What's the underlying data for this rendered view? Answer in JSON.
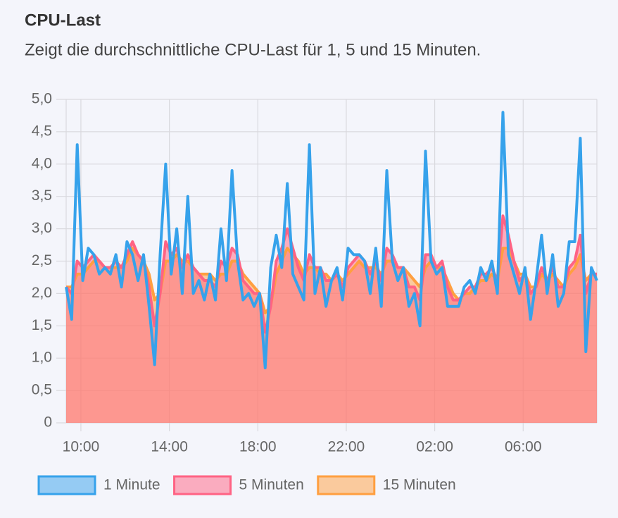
{
  "chart_data": {
    "type": "line",
    "title": "CPU-Last",
    "subtitle": "Zeigt die durchschnittliche CPU-Last für 1, 5 und 15 Minuten.",
    "x": [
      "09:20",
      "09:35",
      "09:50",
      "10:05",
      "10:20",
      "10:35",
      "10:50",
      "11:05",
      "11:20",
      "11:35",
      "11:50",
      "12:05",
      "12:20",
      "12:35",
      "12:50",
      "13:05",
      "13:20",
      "13:35",
      "13:50",
      "14:05",
      "14:20",
      "14:35",
      "14:50",
      "15:05",
      "15:20",
      "15:35",
      "15:50",
      "16:05",
      "16:20",
      "16:35",
      "16:50",
      "17:05",
      "17:20",
      "17:35",
      "17:50",
      "18:05",
      "18:20",
      "18:35",
      "18:50",
      "19:05",
      "19:20",
      "19:35",
      "19:50",
      "20:05",
      "20:20",
      "20:35",
      "20:50",
      "21:05",
      "21:20",
      "21:35",
      "21:50",
      "22:05",
      "22:20",
      "22:35",
      "22:50",
      "23:05",
      "23:20",
      "23:35",
      "23:50",
      "00:05",
      "00:20",
      "00:35",
      "00:50",
      "01:05",
      "01:20",
      "01:35",
      "01:50",
      "02:05",
      "02:20",
      "02:35",
      "02:50",
      "03:05",
      "03:20",
      "03:35",
      "03:50",
      "04:05",
      "04:20",
      "04:35",
      "04:50",
      "05:05",
      "05:20",
      "05:35",
      "05:50",
      "06:05",
      "06:20",
      "06:35",
      "06:50",
      "07:05",
      "07:20",
      "07:35",
      "07:50",
      "08:05",
      "08:20",
      "08:35",
      "08:50",
      "09:05",
      "09:20"
    ],
    "xlim": [
      "09:20",
      "09:20"
    ],
    "xticks": [
      "10:00",
      "14:00",
      "18:00",
      "22:00",
      "02:00",
      "06:00"
    ],
    "ylim": [
      0,
      5
    ],
    "yticks": [
      0,
      {
        "value": 0.5,
        "label": "0,5"
      },
      {
        "value": 1,
        "label": "1,0"
      },
      {
        "value": 1.5,
        "label": "1,5"
      },
      {
        "value": 2,
        "label": "2,0"
      },
      {
        "value": 2.5,
        "label": "2,5"
      },
      {
        "value": 3,
        "label": "3,0"
      },
      {
        "value": 3.5,
        "label": "3,5"
      },
      {
        "value": 4,
        "label": "4,0"
      },
      {
        "value": 4.5,
        "label": "4,5"
      },
      {
        "value": 5,
        "label": "5,0"
      }
    ],
    "grid": true,
    "legend": "bottom",
    "series": [
      {
        "name": "1 Minute",
        "color": "#36a2eb",
        "fill": false,
        "values": [
          2.1,
          1.6,
          4.3,
          2.2,
          2.7,
          2.6,
          2.3,
          2.4,
          2.3,
          2.6,
          2.1,
          2.8,
          2.6,
          2.2,
          2.6,
          1.8,
          0.9,
          2.6,
          4.0,
          2.3,
          3.0,
          2.0,
          3.5,
          2.0,
          2.2,
          1.9,
          2.3,
          1.9,
          3.0,
          2.2,
          3.9,
          2.5,
          1.9,
          2.0,
          1.8,
          2.0,
          0.85,
          2.4,
          2.9,
          2.4,
          3.7,
          2.3,
          2.1,
          1.9,
          4.3,
          2.0,
          2.4,
          1.8,
          2.2,
          2.4,
          1.9,
          2.7,
          2.6,
          2.6,
          2.5,
          2.0,
          2.7,
          1.8,
          3.9,
          2.5,
          2.2,
          2.4,
          1.8,
          2.0,
          1.5,
          4.2,
          2.5,
          2.3,
          2.4,
          1.8,
          1.8,
          1.8,
          2.1,
          2.2,
          2.0,
          2.4,
          2.2,
          2.5,
          2.0,
          4.8,
          2.6,
          2.3,
          2.0,
          2.4,
          1.6,
          2.2,
          2.9,
          2.0,
          2.6,
          1.8,
          2.0,
          2.8,
          2.8,
          4.4,
          1.1,
          2.4,
          2.2
        ]
      },
      {
        "name": "5 Minuten",
        "color": "#ff6384",
        "fill": true,
        "values": [
          2.1,
          2.0,
          2.5,
          2.4,
          2.5,
          2.6,
          2.5,
          2.4,
          2.4,
          2.5,
          2.4,
          2.6,
          2.8,
          2.6,
          2.5,
          2.1,
          1.5,
          2.0,
          2.8,
          2.6,
          2.7,
          2.4,
          2.6,
          2.4,
          2.3,
          2.2,
          2.2,
          2.1,
          2.5,
          2.4,
          2.7,
          2.6,
          2.2,
          2.1,
          2.0,
          2.0,
          1.4,
          1.8,
          2.5,
          2.7,
          3.0,
          2.7,
          2.4,
          2.2,
          2.6,
          2.4,
          2.4,
          2.2,
          2.2,
          2.3,
          2.1,
          2.4,
          2.5,
          2.6,
          2.5,
          2.3,
          2.5,
          2.2,
          2.7,
          2.6,
          2.4,
          2.4,
          2.1,
          2.1,
          1.9,
          2.6,
          2.6,
          2.4,
          2.5,
          2.1,
          1.9,
          1.9,
          2.0,
          2.1,
          2.1,
          2.3,
          2.3,
          2.4,
          2.2,
          3.2,
          2.9,
          2.5,
          2.2,
          2.3,
          2.0,
          2.1,
          2.4,
          2.2,
          2.4,
          2.1,
          2.1,
          2.4,
          2.5,
          2.9,
          2.0,
          2.3,
          2.3
        ]
      },
      {
        "name": "15 Minuten",
        "color": "#ff9f40",
        "fill": true,
        "values": [
          2.1,
          2.1,
          2.3,
          2.3,
          2.4,
          2.5,
          2.5,
          2.4,
          2.4,
          2.4,
          2.4,
          2.5,
          2.7,
          2.6,
          2.5,
          2.3,
          1.9,
          2.0,
          2.5,
          2.5,
          2.6,
          2.5,
          2.5,
          2.4,
          2.3,
          2.3,
          2.3,
          2.2,
          2.3,
          2.3,
          2.5,
          2.5,
          2.3,
          2.2,
          2.1,
          2.0,
          1.7,
          1.8,
          2.3,
          2.5,
          2.7,
          2.6,
          2.5,
          2.3,
          2.4,
          2.4,
          2.3,
          2.3,
          2.2,
          2.3,
          2.2,
          2.3,
          2.4,
          2.5,
          2.4,
          2.4,
          2.4,
          2.3,
          2.5,
          2.5,
          2.4,
          2.4,
          2.3,
          2.2,
          2.1,
          2.4,
          2.5,
          2.4,
          2.4,
          2.2,
          2.0,
          1.9,
          2.0,
          2.0,
          2.1,
          2.2,
          2.2,
          2.3,
          2.2,
          2.7,
          2.7,
          2.5,
          2.3,
          2.3,
          2.1,
          2.1,
          2.3,
          2.2,
          2.3,
          2.2,
          2.1,
          2.3,
          2.4,
          2.6,
          2.2,
          2.3,
          2.3
        ]
      }
    ]
  }
}
